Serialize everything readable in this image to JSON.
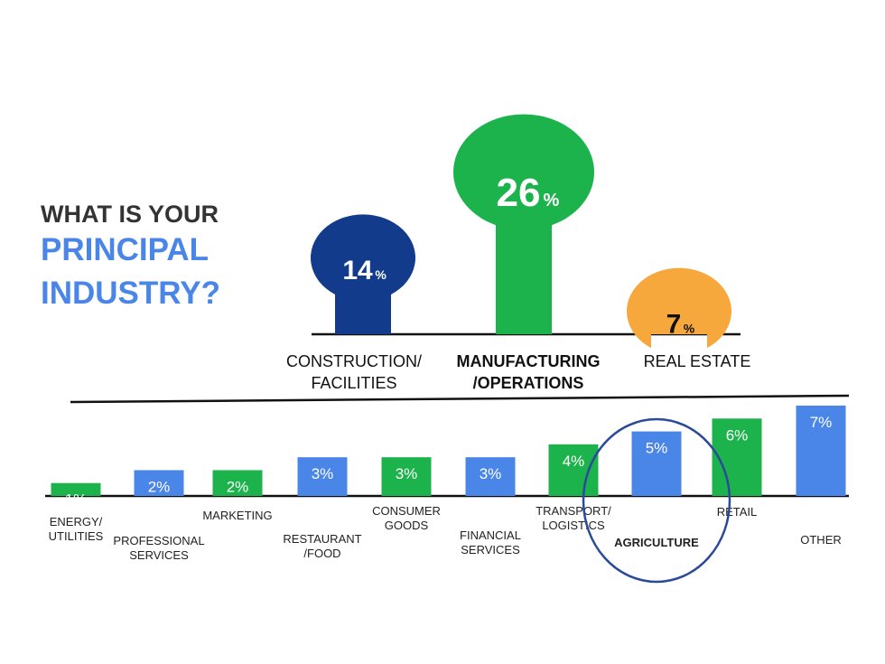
{
  "title": {
    "line1": "WHAT IS YOUR",
    "line2": "PRINCIPAL",
    "line3": "INDUSTRY?"
  },
  "colors": {
    "dark_text": "#333333",
    "accent_blue": "#4a86e8",
    "navy": "#123b8c",
    "green": "#1db34c",
    "orange": "#f7a83c",
    "bar_blue": "#4a86e8",
    "circle": "#2a4a9a"
  },
  "chart_data": [
    {
      "type": "bar",
      "style": "rounded-top bars",
      "categories": [
        {
          "label": [
            "CONSTRUCTION/",
            "FACILITIES"
          ],
          "bold": false
        },
        {
          "label": [
            "MANUFACTURING",
            "/OPERATIONS"
          ],
          "bold": true
        },
        {
          "label": [
            "REAL ESTATE"
          ],
          "bold": false
        }
      ],
      "values": [
        14,
        26,
        7
      ],
      "value_labels": [
        "14",
        "26",
        "7"
      ],
      "unit": "%",
      "colors": [
        "#123b8c",
        "#1db34c",
        "#f7a83c"
      ]
    },
    {
      "type": "bar",
      "categories": [
        {
          "label": [
            "ENERGY/",
            "UTILITIES"
          ],
          "color": "green"
        },
        {
          "label": [
            "PROFESSIONAL",
            "SERVICES"
          ],
          "color": "blue"
        },
        {
          "label": [
            "MARKETING"
          ],
          "color": "green"
        },
        {
          "label": [
            "RESTAURANT",
            "/FOOD"
          ],
          "color": "blue"
        },
        {
          "label": [
            "CONSUMER",
            "GOODS"
          ],
          "color": "green"
        },
        {
          "label": [
            "FINANCIAL",
            "SERVICES"
          ],
          "color": "blue"
        },
        {
          "label": [
            "TRANSPORT/",
            "LOGISTICS"
          ],
          "color": "green"
        },
        {
          "label": [
            "AGRICULTURE"
          ],
          "color": "blue",
          "bold": true,
          "highlighted": true
        },
        {
          "label": [
            "RETAIL"
          ],
          "color": "green"
        },
        {
          "label": [
            "OTHER"
          ],
          "color": "blue"
        }
      ],
      "values": [
        1,
        2,
        2,
        3,
        3,
        3,
        4,
        5,
        6,
        7
      ],
      "value_labels": [
        "1%",
        "2%",
        "2%",
        "3%",
        "3%",
        "3%",
        "4%",
        "5%",
        "6%",
        "7%"
      ],
      "unit": "%",
      "highlight": "AGRICULTURE"
    }
  ]
}
